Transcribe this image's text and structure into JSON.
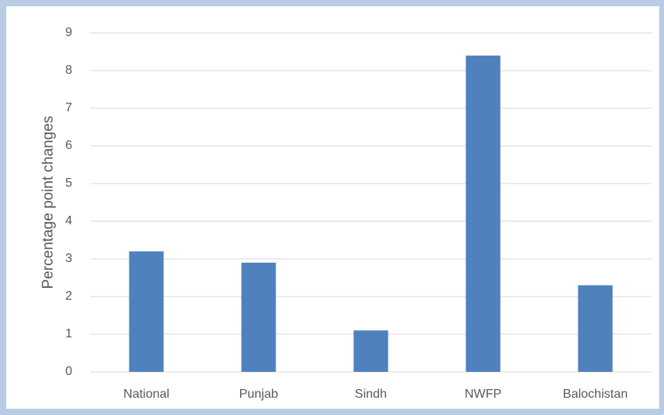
{
  "chart_data": {
    "type": "bar",
    "y_label": "Percentage point changes",
    "categories": [
      "National",
      "Punjab",
      "Sindh",
      "NWFP",
      "Balochistan"
    ],
    "values": [
      3.2,
      2.9,
      1.1,
      8.4,
      2.3
    ],
    "color": "#4f81bd",
    "ylim": [
      0,
      9
    ],
    "yticks": [
      0,
      1,
      2,
      3,
      4,
      5,
      6,
      7,
      8,
      9
    ],
    "grid": true
  }
}
